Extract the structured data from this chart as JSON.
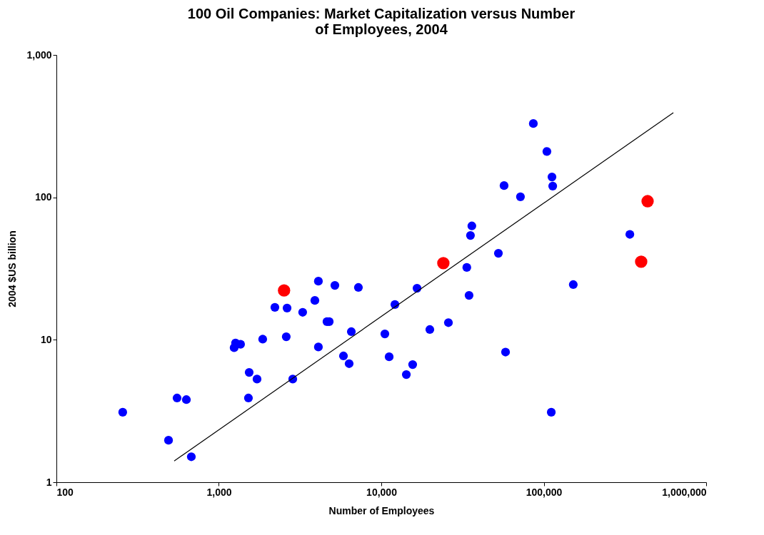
{
  "chart_data": {
    "type": "scatter",
    "title": "100 Oil Companies: Market Capitalization  versus Number of Employees, 2004",
    "xlabel": "Number of Employees",
    "ylabel": "2004 $US billion",
    "log": "xy",
    "grid": false,
    "legend": false,
    "marker": "circle",
    "xlim": [
      100,
      1000000
    ],
    "ylim": [
      1,
      1000
    ],
    "xticks": [
      100,
      {
        "value": 1000,
        "label": "1,000"
      },
      {
        "value": 10000,
        "label": "10,000"
      },
      {
        "value": 100000,
        "label": "100,000"
      },
      {
        "value": 1000000,
        "label": "1,000,000"
      }
    ],
    "yticks": [
      1,
      10,
      100,
      {
        "value": 1000,
        "label": "1,000"
      }
    ],
    "series": [
      {
        "color": "#0000ff",
        "x": [
          256,
          490,
          553,
          631,
          677,
          1242,
          1267,
          1360,
          1862,
          1537,
          1521,
          1718,
          2213,
          2630,
          2600,
          2851,
          3281,
          3900,
          4100,
          4100,
          4630,
          4780,
          5180,
          5850,
          6540,
          6340,
          7230,
          10520,
          11180,
          12130,
          14260,
          15600,
          16600,
          19900,
          25900,
          33600,
          34700,
          35400,
          36100,
          52600,
          57000,
          58200,
          71900,
          86300,
          104600,
          112400,
          113600,
          111300,
          152000,
          339000
        ],
        "values": [
          3.1,
          1.97,
          3.9,
          3.8,
          1.51,
          8.8,
          9.5,
          9.3,
          10.1,
          5.9,
          3.9,
          5.3,
          16.9,
          16.7,
          10.5,
          5.3,
          15.6,
          18.9,
          25.8,
          8.9,
          13.4,
          13.4,
          24.1,
          7.7,
          11.4,
          6.8,
          23.3,
          11.0,
          7.6,
          17.7,
          5.7,
          6.7,
          23.0,
          11.8,
          13.2,
          32.2,
          20.5,
          54,
          63,
          40.5,
          121,
          8.2,
          101,
          330,
          210,
          139,
          120,
          3.1,
          24.4,
          55
        ]
      },
      {
        "color": "#ff0000",
        "x": [
          2520,
          24100,
          398000,
          436000
        ],
        "values": [
          22.2,
          34.5,
          35.3,
          94
        ]
      },
      {
        "type": "line",
        "color": "#000000",
        "marker": "none",
        "x": [
          531,
          628000
        ],
        "values": [
          1.41,
          393
        ]
      }
    ]
  }
}
